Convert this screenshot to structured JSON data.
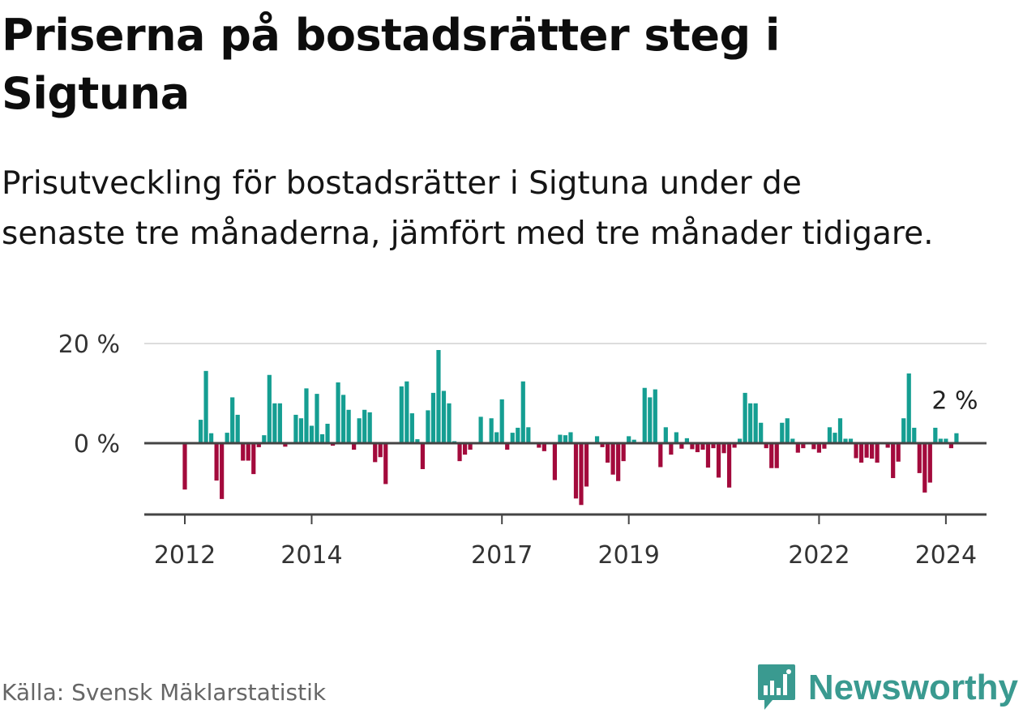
{
  "title": "Priserna på bostadsrätter steg i Sigtuna",
  "subtitle": "Prisutveckling för bostadsrätter i Sigtuna under de senaste tre månaderna, jämfört med tre månader tidigare.",
  "source": "Källa: Svensk Mäklarstatistik",
  "brand": {
    "name": "Newsworthy",
    "icon": "newsworthy-logo-icon"
  },
  "colors": {
    "positive": "#159e92",
    "negative": "#a30a3c",
    "axis": "#444444",
    "grid": "#dddddd",
    "brand": "#3a9a90"
  },
  "chart_data": {
    "type": "bar",
    "title": "Priserna på bostadsrätter steg i Sigtuna",
    "xlabel": "",
    "ylabel": "",
    "y_unit": "%",
    "ylim": [
      -14,
      20
    ],
    "y_ticks": [
      {
        "value": 20,
        "label": "20 %"
      },
      {
        "value": 0,
        "label": "0 %"
      }
    ],
    "x_ticks": [
      {
        "label": "2012",
        "index": 0
      },
      {
        "label": "2014",
        "index": 24
      },
      {
        "label": "2017",
        "index": 60
      },
      {
        "label": "2019",
        "index": 84
      },
      {
        "label": "2022",
        "index": 120
      },
      {
        "label": "2024",
        "index": 144
      }
    ],
    "start": "2012-01",
    "last_label": "2 %",
    "values": [
      -9.3,
      0,
      0,
      4.7,
      14.5,
      2.0,
      -7.5,
      -11.2,
      2.1,
      9.2,
      5.7,
      -3.5,
      -3.5,
      -6.2,
      -0.8,
      1.6,
      13.7,
      8.0,
      8.0,
      -0.7,
      0,
      5.7,
      5.0,
      11.0,
      3.5,
      9.9,
      1.8,
      3.9,
      -0.5,
      12.2,
      9.7,
      6.7,
      -1.3,
      5.0,
      6.7,
      6.2,
      -3.8,
      -2.8,
      -8.2,
      0,
      0,
      11.4,
      12.4,
      6.0,
      0.8,
      -5.2,
      6.6,
      10.1,
      18.7,
      10.5,
      8.0,
      0.4,
      -3.6,
      -2.3,
      -1.3,
      0,
      5.3,
      0,
      5.0,
      2.2,
      8.8,
      -1.3,
      2.1,
      3.1,
      12.4,
      3.2,
      0,
      -0.9,
      -1.6,
      0,
      -7.4,
      1.7,
      1.6,
      2.2,
      -11.1,
      -12.4,
      -8.7,
      0,
      1.4,
      -0.8,
      -3.9,
      -6.3,
      -7.6,
      -3.6,
      1.4,
      0.7,
      0,
      11.1,
      9.2,
      10.8,
      -4.8,
      3.2,
      -2.3,
      2.2,
      -1.1,
      1.0,
      -1.2,
      -1.8,
      -1.3,
      -4.9,
      -1.0,
      -6.9,
      -2.0,
      -8.9,
      -0.9,
      0.9,
      10.1,
      8.0,
      8.0,
      4.1,
      -1.0,
      -5.0,
      -5.0,
      4.1,
      5.0,
      0.9,
      -1.9,
      -1.0,
      0,
      -1.2,
      -1.9,
      -1.1,
      3.2,
      2.1,
      5.0,
      0.9,
      0.9,
      -3.0,
      -3.9,
      -2.9,
      -3.1,
      -3.9,
      0,
      -0.9,
      -7.0,
      -3.7,
      5.0,
      14.0,
      3.1,
      -6.0,
      -9.9,
      -7.9,
      3.1,
      0.9,
      0.9,
      -1.0,
      2.0
    ]
  }
}
